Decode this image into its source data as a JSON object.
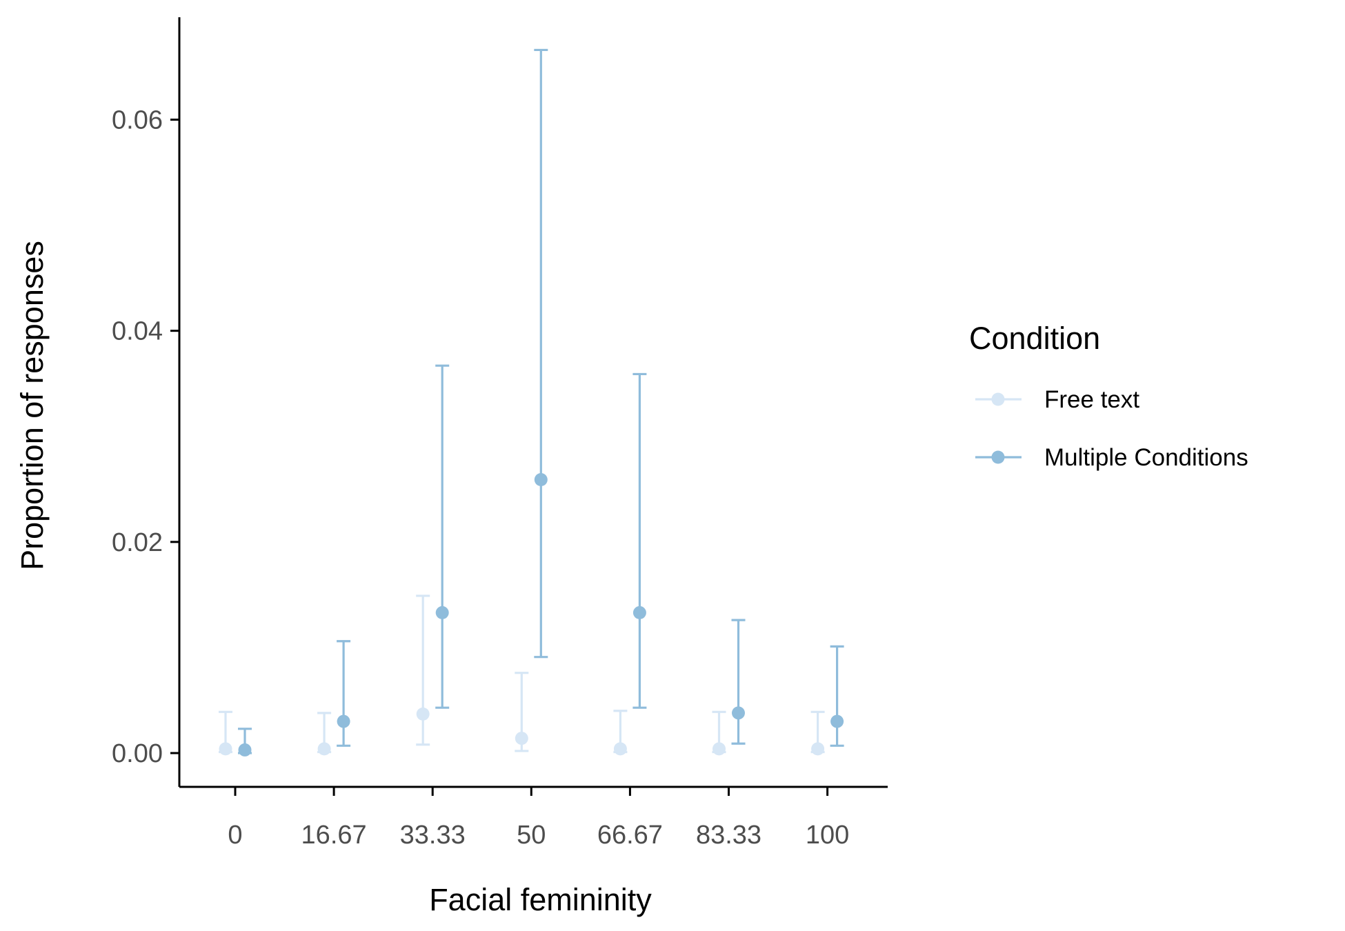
{
  "chart_data": {
    "type": "scatter",
    "xlabel": "Facial femininity",
    "ylabel": "Proportion of responses",
    "categories": [
      "0",
      "16.67",
      "33.33",
      "50",
      "66.67",
      "83.33",
      "100"
    ],
    "yticks": [
      "0.00",
      "0.02",
      "0.04",
      "0.06"
    ],
    "ylim": [
      -0.0032,
      0.0697
    ],
    "grid": false,
    "legend": {
      "title": "Condition",
      "position": "right"
    },
    "series": [
      {
        "name": "Free text",
        "color": "#d6e6f5",
        "values": [
          0.0004,
          0.0004,
          0.0037,
          0.0014,
          0.0004,
          0.0004,
          0.0004
        ],
        "lower": [
          0.0001,
          0.0001,
          0.0008,
          0.0002,
          0.0001,
          0.0001,
          0.0001
        ],
        "upper": [
          0.0039,
          0.0038,
          0.0149,
          0.0076,
          0.004,
          0.0039,
          0.0039
        ]
      },
      {
        "name": "Multiple Conditions",
        "color": "#8fbcdb",
        "values": [
          0.0003,
          0.003,
          0.0133,
          0.0259,
          0.0133,
          0.0038,
          0.003
        ],
        "lower": [
          0.0,
          0.0007,
          0.0043,
          0.0091,
          0.0043,
          0.0009,
          0.0007
        ],
        "upper": [
          0.0023,
          0.0106,
          0.0367,
          0.0666,
          0.0359,
          0.0126,
          0.0101
        ]
      }
    ]
  }
}
